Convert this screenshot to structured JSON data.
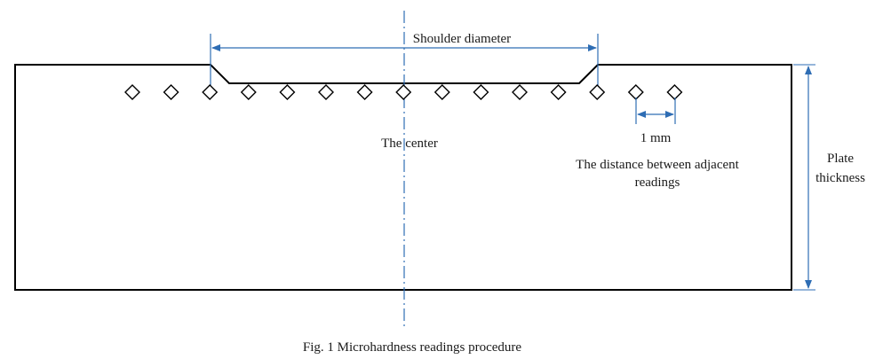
{
  "labels": {
    "shoulder_diameter": "Shoulder diameter",
    "center": "The center",
    "spacing": "1 mm",
    "distance_line1": "The distance between adjacent",
    "distance_line2": "readings",
    "plate_line1": "Plate",
    "plate_line2": "thickness"
  },
  "caption": "Fig. 1  Microhardness readings procedure",
  "colors": {
    "outline": "#000000",
    "dimension": "#2e6db4",
    "text": "#1a1a1a"
  },
  "readings_count": 15
}
